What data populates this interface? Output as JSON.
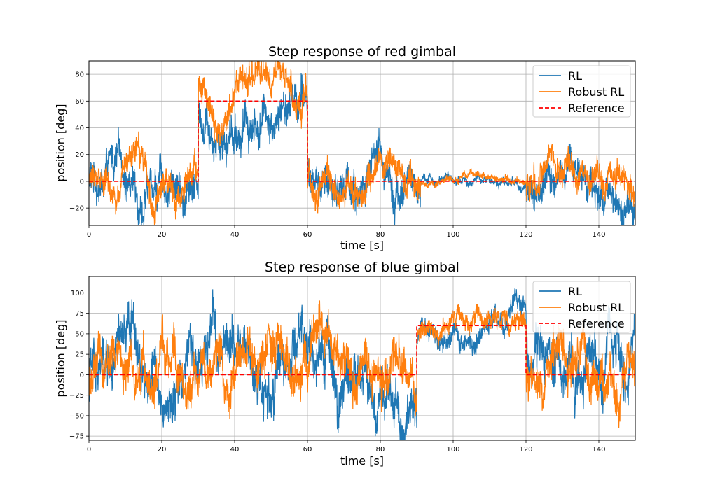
{
  "chart_data": [
    {
      "type": "line",
      "title": "Step response of red gimbal",
      "xlabel": "time [s]",
      "ylabel": "position [deg]",
      "xlim": [
        0,
        150
      ],
      "ylim": [
        -33,
        90
      ],
      "xticks": [
        0,
        20,
        40,
        60,
        80,
        100,
        120,
        140
      ],
      "yticks": [
        -20,
        0,
        20,
        40,
        60,
        80
      ],
      "grid": true,
      "legend_position": "top-right",
      "colors": {
        "RL": "#1f77b4",
        "Robust RL": "#ff7f0e",
        "Reference": "#ff0000"
      },
      "series": [
        {
          "name": "RL",
          "style": "solid",
          "noise_amplitude": 11
        },
        {
          "name": "Robust RL",
          "style": "solid",
          "noise_amplitude": 9
        },
        {
          "name": "Reference",
          "style": "dashed",
          "x": [
            0,
            30,
            30,
            60,
            60,
            150
          ],
          "y": [
            0,
            0,
            60,
            60,
            0,
            0
          ]
        }
      ],
      "segments": [
        {
          "from": 0,
          "to": 30,
          "level": 0,
          "amp": 1.0
        },
        {
          "from": 30,
          "to": 60,
          "level": 58,
          "amp": 1.1
        },
        {
          "from": 60,
          "to": 91,
          "level": 0,
          "amp": 1.0
        },
        {
          "from": 91,
          "to": 120,
          "level": 0,
          "amp": 0.25
        },
        {
          "from": 120,
          "to": 150,
          "level": 0,
          "amp": 1.0
        }
      ]
    },
    {
      "type": "line",
      "title": "Step response of blue gimbal",
      "xlabel": "time [s]",
      "ylabel": "position [deg]",
      "xlim": [
        0,
        150
      ],
      "ylim": [
        -80,
        120
      ],
      "xticks": [
        0,
        20,
        40,
        60,
        80,
        100,
        120,
        140
      ],
      "yticks": [
        -75,
        -50,
        -25,
        0,
        25,
        50,
        75,
        100
      ],
      "grid": true,
      "legend_position": "top-right",
      "colors": {
        "RL": "#1f77b4",
        "Robust RL": "#ff7f0e",
        "Reference": "#ff0000"
      },
      "series": [
        {
          "name": "RL",
          "style": "solid",
          "noise_amplitude": 24
        },
        {
          "name": "Robust RL",
          "style": "solid",
          "noise_amplitude": 22
        },
        {
          "name": "Reference",
          "style": "dashed",
          "x": [
            0,
            90,
            90,
            120,
            120,
            150
          ],
          "y": [
            0,
            0,
            60,
            60,
            0,
            0
          ]
        }
      ],
      "segments": [
        {
          "from": 0,
          "to": 90,
          "level": 0,
          "amp": 1.0
        },
        {
          "from": 90,
          "to": 120,
          "level": 65,
          "amp": 0.45
        },
        {
          "from": 120,
          "to": 150,
          "level": 0,
          "amp": 1.0
        }
      ]
    }
  ]
}
